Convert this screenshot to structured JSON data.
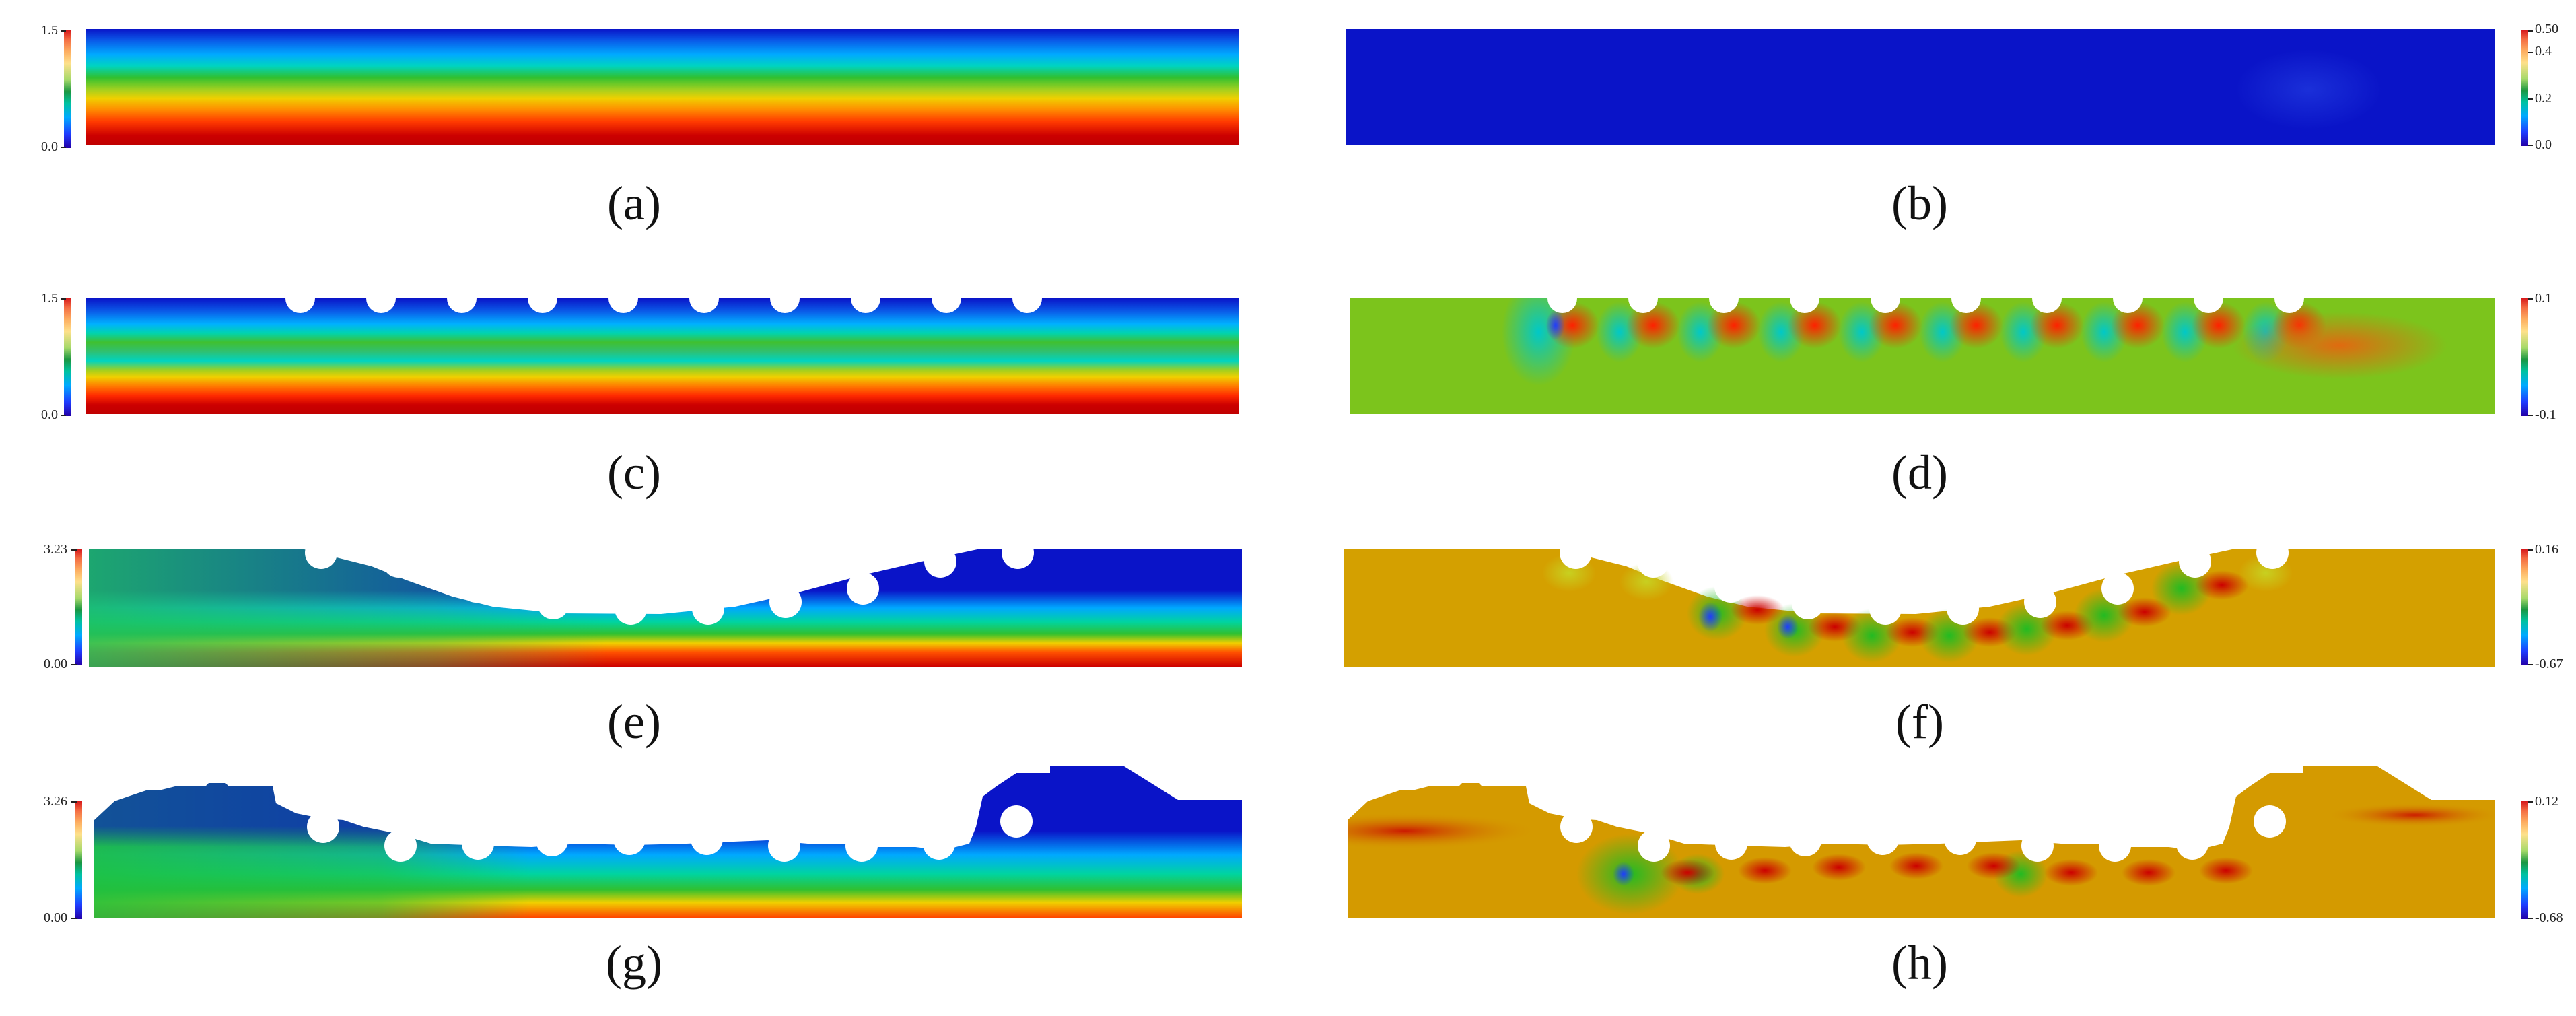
{
  "captions": [
    "(a)",
    "(b)",
    "(c)",
    "(d)",
    "(e)",
    "(f)",
    "(g)",
    "(h)"
  ],
  "colorbars": {
    "a": {
      "max": "1.5",
      "min": "0.0"
    },
    "b": {
      "t0": "0.50",
      "t1": "0.4",
      "t2": "0.2",
      "t3": "0.0"
    },
    "c": {
      "max": "1.5",
      "min": "0.0"
    },
    "d": {
      "max": "0.1",
      "min": "-0.1"
    },
    "e": {
      "max": "3.23",
      "min": "0.00"
    },
    "f": {
      "max": "0.16",
      "min": "-0.67"
    },
    "g": {
      "max": "3.26",
      "min": "0.00"
    },
    "h": {
      "max": "0.12",
      "min": "-0.68"
    }
  },
  "colors": {
    "red": "#cc0000",
    "green": "#22bb22",
    "blue": "#0a14c8",
    "orange": "#d4a000",
    "cyan": "#00c8c8"
  }
}
